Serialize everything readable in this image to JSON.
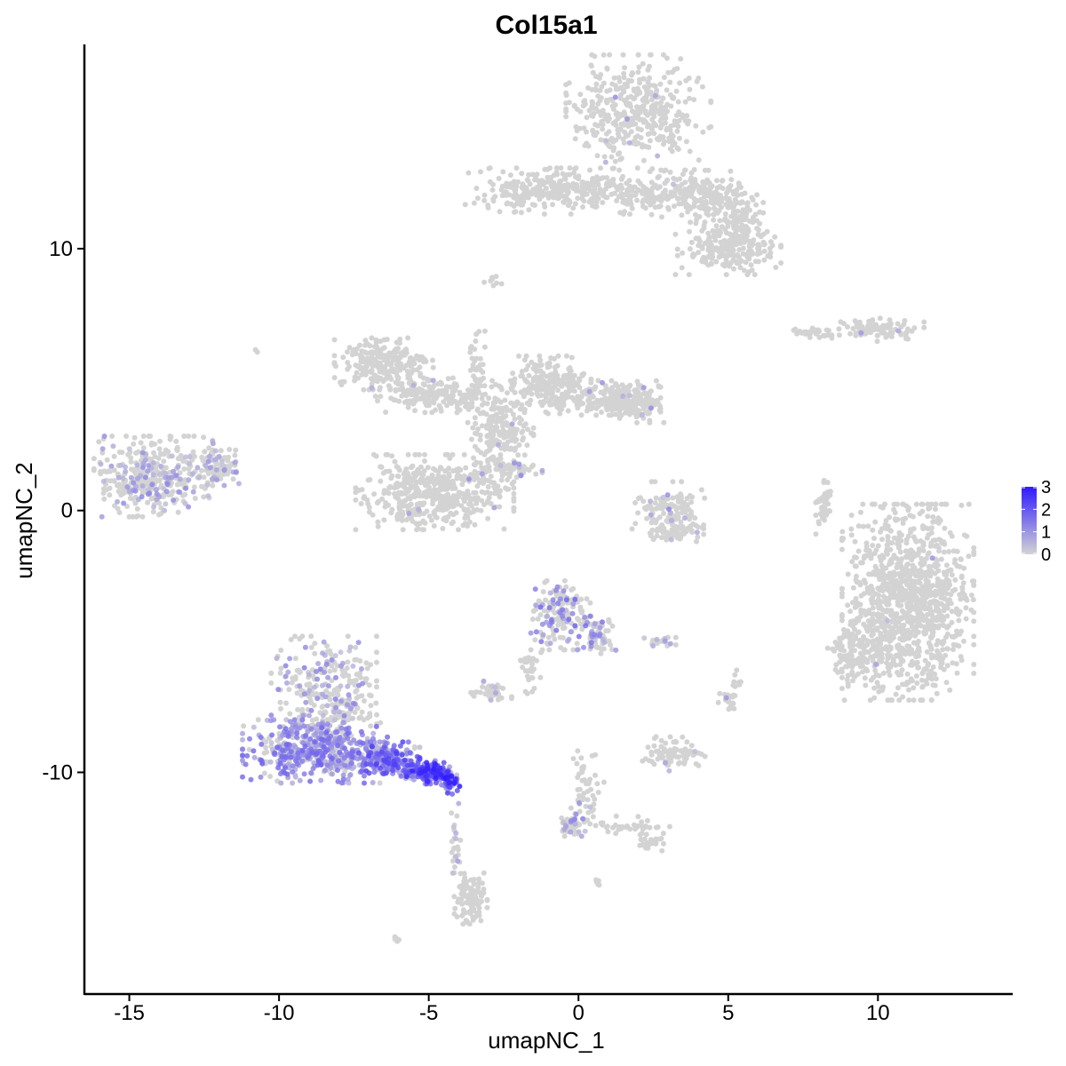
{
  "chart_data": {
    "type": "scatter",
    "title": "Col15a1",
    "xlabel": "umapNC_1",
    "ylabel": "umapNC_2",
    "xlim": [
      -16.5,
      14.5
    ],
    "ylim": [
      -18.5,
      17.8
    ],
    "x_ticks": [
      -15,
      -10,
      -5,
      0,
      5,
      10
    ],
    "x_tick_labels": [
      "-15",
      "-10",
      "-5",
      "0",
      "5",
      "10"
    ],
    "y_ticks": [
      -10,
      0,
      10
    ],
    "y_tick_labels": [
      "-10",
      "0",
      "10"
    ],
    "grid": false,
    "legend_position": "right",
    "color_scale": {
      "low": "#d3d3d3",
      "high": "#2f1aff",
      "min": 0,
      "max": 3
    },
    "legend_ticks": [
      0,
      1,
      2,
      3
    ],
    "legend_tick_labels": [
      "0",
      "1",
      "2",
      "3"
    ],
    "clusters": [
      {
        "cx": 2.0,
        "cy": 15.2,
        "rx": 2.2,
        "ry": 2.0,
        "n": 420,
        "expr_frac": 0.01,
        "expr_max": 1.2
      },
      {
        "cx": 1.0,
        "cy": 12.2,
        "rx": 3.0,
        "ry": 0.8,
        "n": 260,
        "expr_frac": 0.0,
        "expr_max": 0
      },
      {
        "cx": -1.8,
        "cy": 12.2,
        "rx": 1.8,
        "ry": 0.8,
        "n": 160,
        "expr_frac": 0.0,
        "expr_max": 0
      },
      {
        "cx": 4.2,
        "cy": 12.0,
        "rx": 1.6,
        "ry": 0.9,
        "n": 200,
        "expr_frac": 0.01,
        "expr_max": 1.5
      },
      {
        "cx": 5.0,
        "cy": 10.0,
        "rx": 1.6,
        "ry": 0.9,
        "n": 220,
        "expr_frac": 0.0,
        "expr_max": 0
      },
      {
        "cx": 5.4,
        "cy": 11.2,
        "rx": 0.7,
        "ry": 0.8,
        "n": 80,
        "expr_frac": 0.0,
        "expr_max": 0
      },
      {
        "cx": 10.0,
        "cy": 6.9,
        "rx": 1.4,
        "ry": 0.4,
        "n": 90,
        "expr_frac": 0.02,
        "expr_max": 1.0
      },
      {
        "cx": 7.8,
        "cy": 6.8,
        "rx": 0.7,
        "ry": 0.25,
        "n": 30,
        "expr_frac": 0.0,
        "expr_max": 0
      },
      {
        "cx": -6.5,
        "cy": 5.6,
        "rx": 1.5,
        "ry": 0.9,
        "n": 220,
        "expr_frac": 0.02,
        "expr_max": 1.0
      },
      {
        "cx": -4.8,
        "cy": 4.4,
        "rx": 1.8,
        "ry": 0.6,
        "n": 200,
        "expr_frac": 0.01,
        "expr_max": 1.0
      },
      {
        "cx": -2.6,
        "cy": 3.2,
        "rx": 1.0,
        "ry": 1.6,
        "n": 200,
        "expr_frac": 0.01,
        "expr_max": 1.0
      },
      {
        "cx": -0.9,
        "cy": 4.8,
        "rx": 1.2,
        "ry": 1.0,
        "n": 220,
        "expr_frac": 0.01,
        "expr_max": 1.0
      },
      {
        "cx": 1.2,
        "cy": 4.3,
        "rx": 1.4,
        "ry": 0.6,
        "n": 220,
        "expr_frac": 0.03,
        "expr_max": 1.2
      },
      {
        "cx": 2.0,
        "cy": 3.9,
        "rx": 0.8,
        "ry": 0.5,
        "n": 80,
        "expr_frac": 0.05,
        "expr_max": 1.2
      },
      {
        "cx": -4.8,
        "cy": 0.7,
        "rx": 2.4,
        "ry": 1.3,
        "n": 520,
        "expr_frac": 0.02,
        "expr_max": 1.2
      },
      {
        "cx": -3.4,
        "cy": 5.5,
        "rx": 0.25,
        "ry": 1.4,
        "n": 40,
        "expr_frac": 0.0,
        "expr_max": 0
      },
      {
        "cx": -2.2,
        "cy": 1.6,
        "rx": 0.9,
        "ry": 0.3,
        "n": 50,
        "expr_frac": 0.15,
        "expr_max": 1.4
      },
      {
        "cx": -14.2,
        "cy": 1.3,
        "rx": 1.8,
        "ry": 1.4,
        "n": 380,
        "expr_frac": 0.25,
        "expr_max": 1.2
      },
      {
        "cx": -12.1,
        "cy": 1.7,
        "rx": 0.8,
        "ry": 0.8,
        "n": 80,
        "expr_frac": 0.3,
        "expr_max": 1.2
      },
      {
        "cx": 3.0,
        "cy": 0.0,
        "rx": 1.1,
        "ry": 1.0,
        "n": 120,
        "expr_frac": 0.08,
        "expr_max": 1.3
      },
      {
        "cx": 3.3,
        "cy": -0.8,
        "rx": 0.8,
        "ry": 0.4,
        "n": 60,
        "expr_frac": 0.05,
        "expr_max": 1.2
      },
      {
        "cx": 8.2,
        "cy": 0.2,
        "rx": 0.25,
        "ry": 1.0,
        "n": 50,
        "expr_frac": 0.0,
        "expr_max": 0
      },
      {
        "cx": 11.0,
        "cy": -3.5,
        "rx": 2.0,
        "ry": 3.4,
        "n": 1100,
        "expr_frac": 0.004,
        "expr_max": 1.4
      },
      {
        "cx": 9.2,
        "cy": -5.5,
        "rx": 0.8,
        "ry": 1.1,
        "n": 120,
        "expr_frac": 0.0,
        "expr_max": 0
      },
      {
        "cx": -0.6,
        "cy": -4.0,
        "rx": 0.9,
        "ry": 1.2,
        "n": 160,
        "expr_frac": 0.3,
        "expr_max": 1.8
      },
      {
        "cx": 0.7,
        "cy": -4.8,
        "rx": 0.5,
        "ry": 0.8,
        "n": 60,
        "expr_frac": 0.3,
        "expr_max": 1.6
      },
      {
        "cx": -1.6,
        "cy": -6.0,
        "rx": 0.4,
        "ry": 0.9,
        "n": 30,
        "expr_frac": 0.0,
        "expr_max": 0
      },
      {
        "cx": -3.0,
        "cy": -6.9,
        "rx": 0.7,
        "ry": 0.35,
        "n": 40,
        "expr_frac": 0.05,
        "expr_max": 1.0
      },
      {
        "cx": 2.7,
        "cy": -5.0,
        "rx": 0.5,
        "ry": 0.2,
        "n": 20,
        "expr_frac": 0.25,
        "expr_max": 1.3
      },
      {
        "cx": 3.2,
        "cy": -9.3,
        "rx": 1.0,
        "ry": 0.6,
        "n": 80,
        "expr_frac": 0.03,
        "expr_max": 2.5
      },
      {
        "cx": 5.0,
        "cy": -7.3,
        "rx": 0.3,
        "ry": 0.4,
        "n": 20,
        "expr_frac": 0.05,
        "expr_max": 1.0
      },
      {
        "cx": 0.3,
        "cy": -10.5,
        "rx": 0.5,
        "ry": 1.2,
        "n": 50,
        "expr_frac": 0.08,
        "expr_max": 1.2
      },
      {
        "cx": -0.2,
        "cy": -12.0,
        "rx": 0.5,
        "ry": 0.4,
        "n": 40,
        "expr_frac": 0.3,
        "expr_max": 1.3
      },
      {
        "cx": 1.5,
        "cy": -12.0,
        "rx": 1.5,
        "ry": 0.3,
        "n": 40,
        "expr_frac": 0.0,
        "expr_max": 0
      },
      {
        "cx": 2.4,
        "cy": -12.7,
        "rx": 0.4,
        "ry": 0.3,
        "n": 30,
        "expr_frac": 0.0,
        "expr_max": 0
      },
      {
        "cx": -8.5,
        "cy": -7.0,
        "rx": 1.6,
        "ry": 2.0,
        "n": 300,
        "expr_frac": 0.3,
        "expr_max": 1.4
      },
      {
        "cx": -8.8,
        "cy": -9.2,
        "rx": 2.2,
        "ry": 1.1,
        "n": 500,
        "expr_frac": 0.75,
        "expr_max": 1.8
      },
      {
        "cx": -6.4,
        "cy": -9.5,
        "rx": 1.0,
        "ry": 0.6,
        "n": 220,
        "expr_frac": 0.95,
        "expr_max": 2.4
      },
      {
        "cx": -5.0,
        "cy": -10.0,
        "rx": 0.7,
        "ry": 0.4,
        "n": 160,
        "expr_frac": 1.0,
        "expr_max": 3.0
      },
      {
        "cx": -4.3,
        "cy": -10.4,
        "rx": 0.3,
        "ry": 0.4,
        "n": 60,
        "expr_frac": 1.0,
        "expr_max": 3.0
      },
      {
        "cx": -4.1,
        "cy": -13.0,
        "rx": 0.15,
        "ry": 2.0,
        "n": 30,
        "expr_frac": 0.2,
        "expr_max": 1.0
      },
      {
        "cx": -3.6,
        "cy": -14.8,
        "rx": 0.5,
        "ry": 0.9,
        "n": 110,
        "expr_frac": 0.0,
        "expr_max": 0
      },
      {
        "cx": -6.1,
        "cy": -16.4,
        "rx": 0.2,
        "ry": 0.15,
        "n": 6,
        "expr_frac": 0.0,
        "expr_max": 0
      },
      {
        "cx": 0.6,
        "cy": -14.2,
        "rx": 0.15,
        "ry": 0.15,
        "n": 6,
        "expr_frac": 0.0,
        "expr_max": 0
      },
      {
        "cx": -10.8,
        "cy": 6.1,
        "rx": 0.1,
        "ry": 0.1,
        "n": 2,
        "expr_frac": 0.0,
        "expr_max": 0
      },
      {
        "cx": -2.9,
        "cy": 8.8,
        "rx": 0.3,
        "ry": 0.3,
        "n": 8,
        "expr_frac": 0.0,
        "expr_max": 0
      },
      {
        "cx": 5.2,
        "cy": -6.5,
        "rx": 0.2,
        "ry": 0.4,
        "n": 8,
        "expr_frac": 0.0,
        "expr_max": 0
      }
    ]
  }
}
